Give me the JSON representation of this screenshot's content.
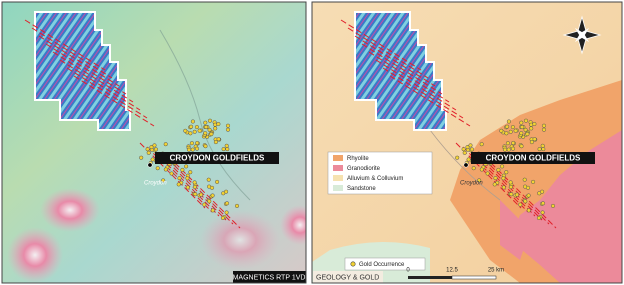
{
  "panels": [
    {
      "place_label": "Croydon",
      "title_label": "CROYDON GOLDFIELDS",
      "caption": "MAGNETICS RTP 1VD"
    },
    {
      "place_label": "Croydon",
      "title_label": "CROYDON GOLDFIELDS",
      "caption": "GEOLOGY & GOLD",
      "legend": [
        "Rhyolite",
        "Granodiorite",
        "Alluvium & Colluvium",
        "Sandstone"
      ],
      "gold_legend": "Gold Occurrence",
      "scale": [
        "0",
        "12.5",
        "25 km"
      ]
    }
  ]
}
